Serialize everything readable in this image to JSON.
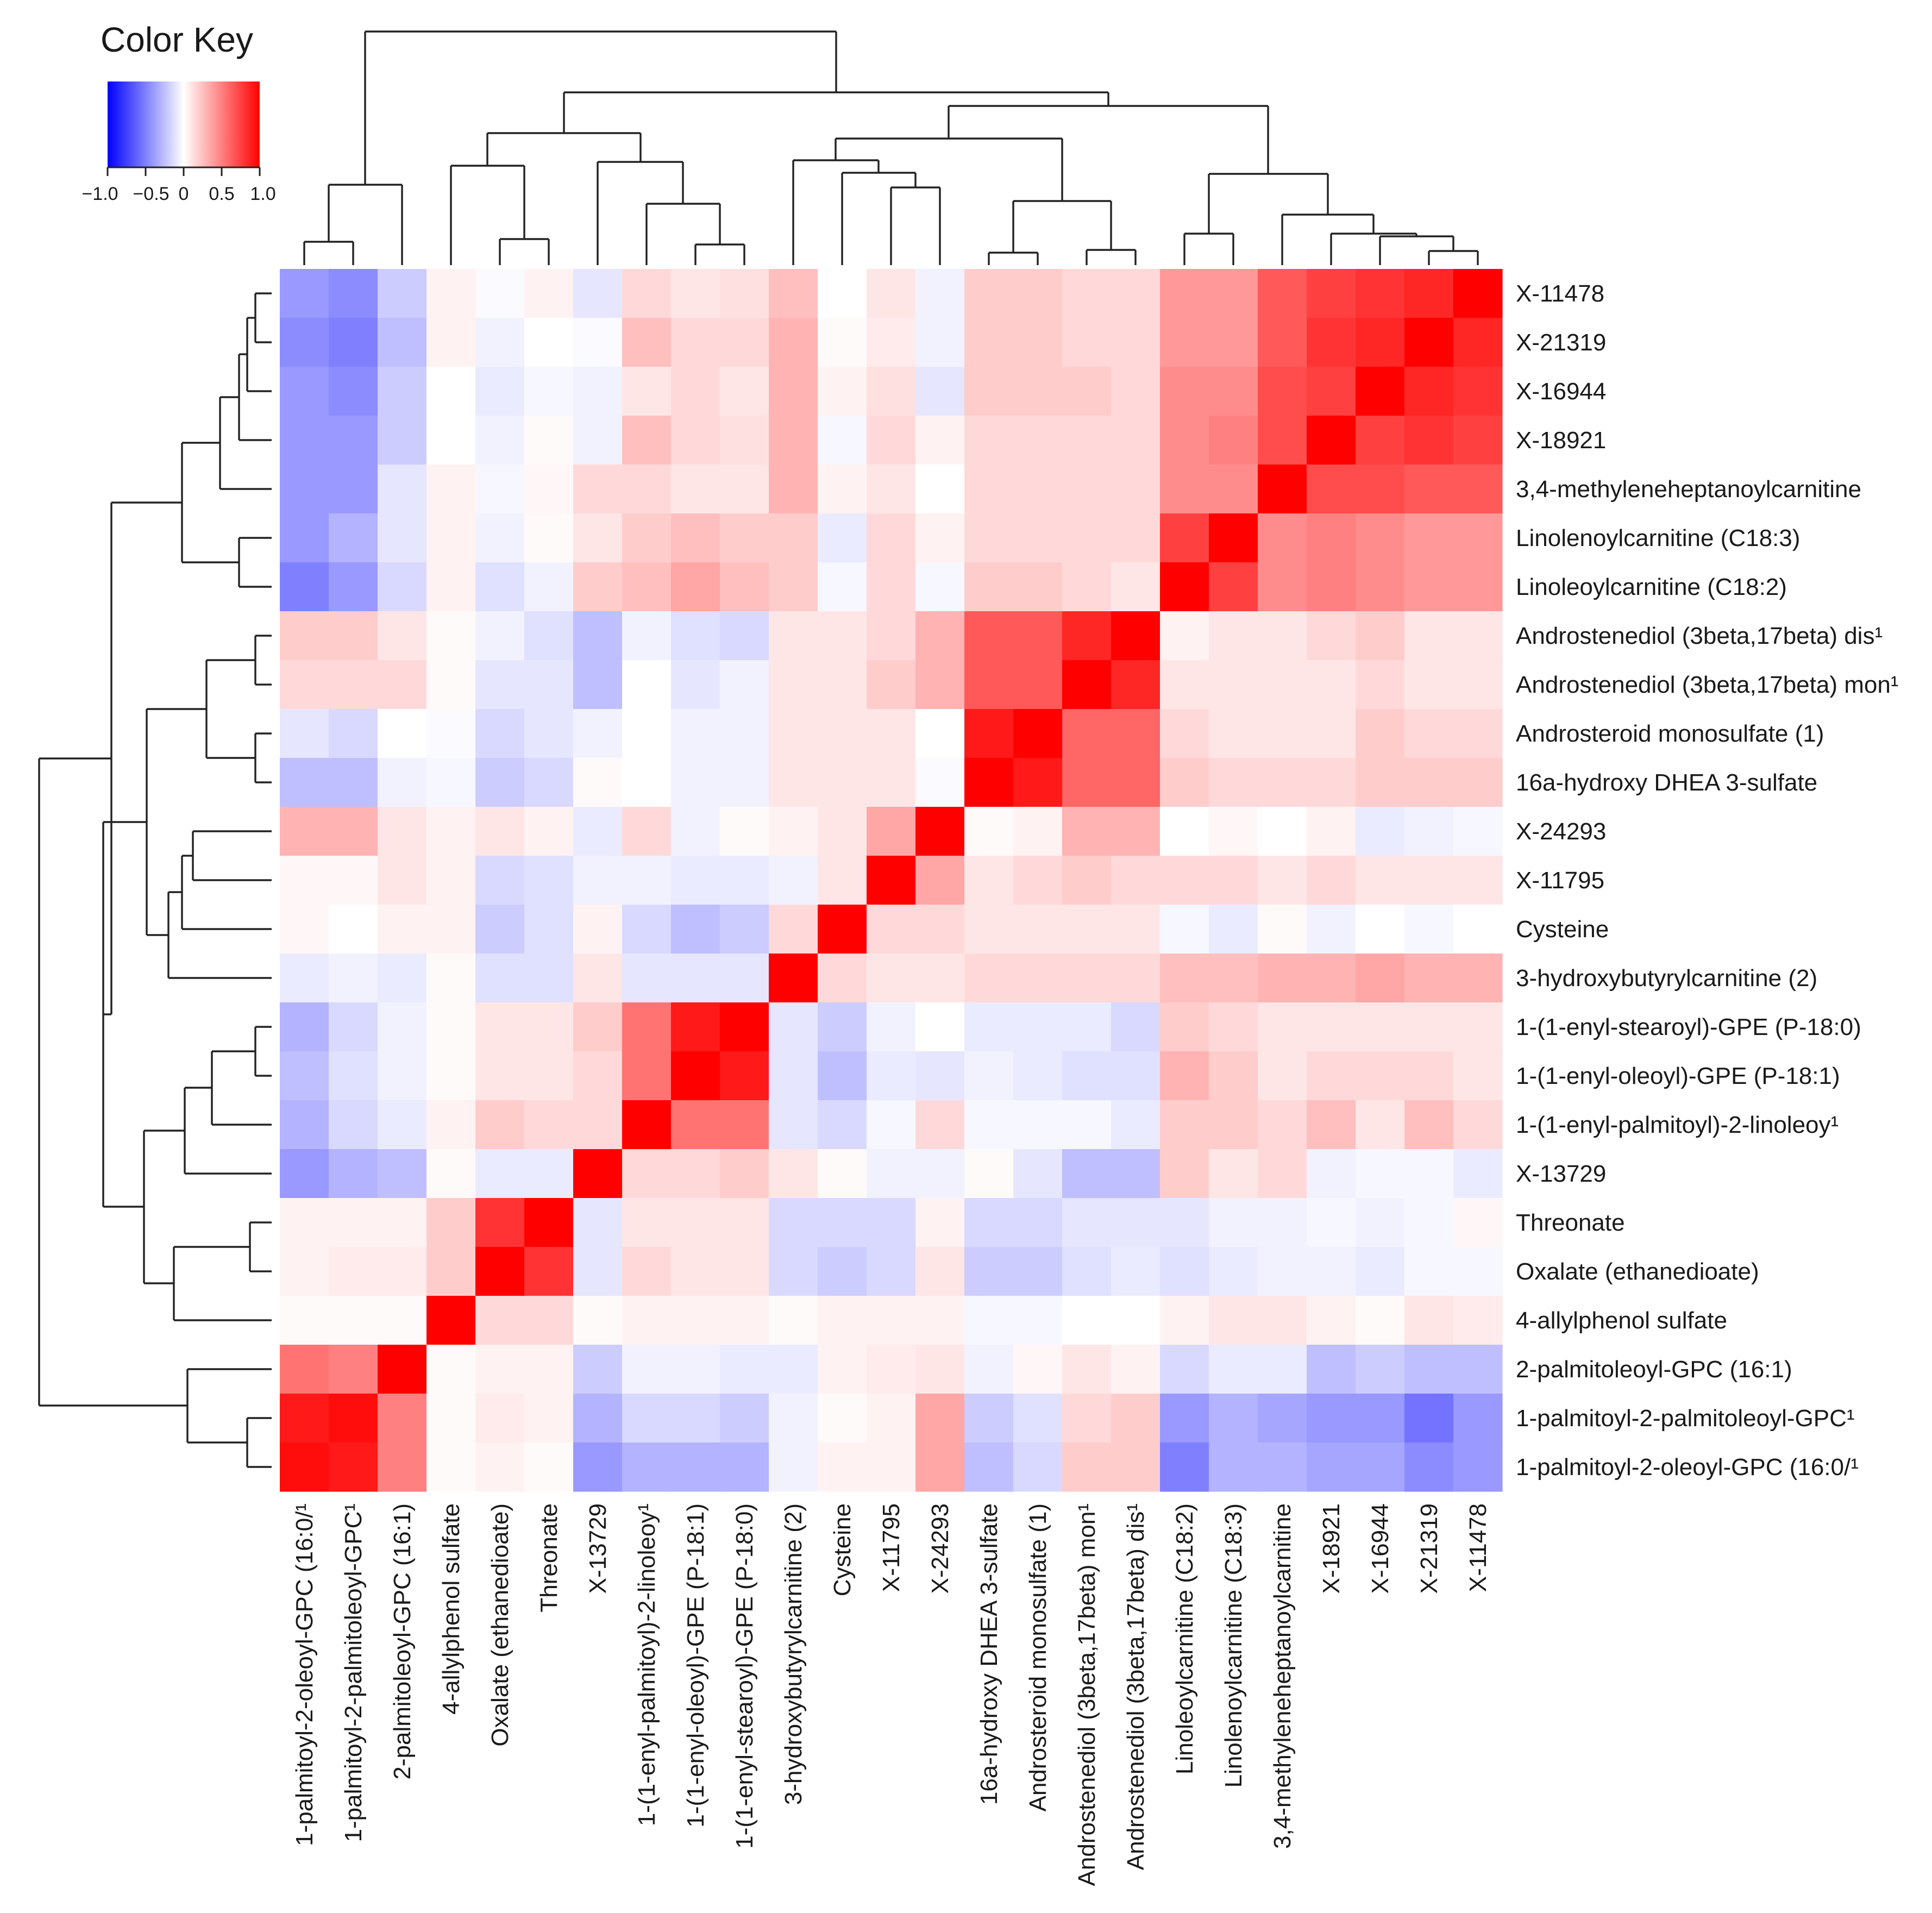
{
  "chart_data": {
    "type": "heatmap",
    "title": "",
    "color_key": {
      "title": "Color Key",
      "tick_labels": [
        "−1.0",
        "−0.5",
        "0",
        "0.5",
        "1.0"
      ],
      "range": [
        -1.0,
        1.0
      ],
      "low_color": "#0000ff",
      "mid_color": "#ffffff",
      "high_color": "#ff0000"
    },
    "row_labels": [
      "X-11478",
      "X-21319",
      "X-16944",
      "X-18921",
      "3,4-methyleneheptanoylcarnitine",
      "Linolenoylcarnitine (C18:3)",
      "Linoleoylcarnitine (C18:2)",
      "Androstenediol (3beta,17beta) dis¹",
      "Androstenediol (3beta,17beta) mon¹",
      "Androsteroid monosulfate (1)",
      "16a-hydroxy DHEA 3-sulfate",
      "X-24293",
      "X-11795",
      "Cysteine",
      "3-hydroxybutyrylcarnitine (2)",
      "1-(1-enyl-stearoyl)-GPE (P-18:0)",
      "1-(1-enyl-oleoyl)-GPE (P-18:1)",
      "1-(1-enyl-palmitoyl)-2-linoleoy¹",
      "X-13729",
      "Threonate",
      "Oxalate (ethanedioate)",
      "4-allylphenol sulfate",
      "2-palmitoleoyl-GPC (16:1)",
      "1-palmitoyl-2-palmitoleoyl-GPC¹",
      "1-palmitoyl-2-oleoyl-GPC (16:0/¹"
    ],
    "column_labels": [
      "1-palmitoyl-2-oleoyl-GPC (16:0/¹",
      "1-palmitoyl-2-palmitoleoyl-GPC¹",
      "2-palmitoleoyl-GPC (16:1)",
      "4-allylphenol sulfate",
      "Oxalate (ethanedioate)",
      "Threonate",
      "X-13729",
      "1-(1-enyl-palmitoyl)-2-linoleoy¹",
      "1-(1-enyl-oleoyl)-GPE (P-18:1)",
      "1-(1-enyl-stearoyl)-GPE (P-18:0)",
      "3-hydroxybutyrylcarnitine (2)",
      "Cysteine",
      "X-11795",
      "X-24293",
      "16a-hydroxy DHEA 3-sulfate",
      "Androsteroid monosulfate (1)",
      "Androstenediol (3beta,17beta) mon¹",
      "Androstenediol (3beta,17beta) dis¹",
      "Linoleoylcarnitine (C18:2)",
      "Linolenoylcarnitine (C18:3)",
      "3,4-methyleneheptanoylcarnitine",
      "X-18921",
      "X-16944",
      "X-21319",
      "X-11478"
    ],
    "values": [
      [
        -0.4,
        -0.45,
        -0.2,
        0.05,
        -0.02,
        0.05,
        -0.1,
        0.15,
        0.1,
        0.12,
        0.25,
        0.0,
        0.1,
        -0.05,
        0.2,
        0.2,
        0.15,
        0.15,
        0.4,
        0.4,
        0.65,
        0.75,
        0.8,
        0.85,
        1.0
      ],
      [
        -0.45,
        -0.5,
        -0.25,
        0.05,
        -0.05,
        0.0,
        -0.02,
        0.25,
        0.15,
        0.15,
        0.3,
        0.02,
        0.08,
        -0.05,
        0.2,
        0.2,
        0.15,
        0.15,
        0.4,
        0.4,
        0.65,
        0.8,
        0.85,
        1.0,
        0.85
      ],
      [
        -0.4,
        -0.45,
        -0.2,
        0.0,
        -0.08,
        -0.03,
        -0.05,
        0.1,
        0.15,
        0.1,
        0.3,
        0.05,
        0.12,
        -0.1,
        0.2,
        0.2,
        0.2,
        0.15,
        0.45,
        0.45,
        0.7,
        0.75,
        1.0,
        0.85,
        0.8
      ],
      [
        -0.4,
        -0.4,
        -0.2,
        0.0,
        -0.05,
        0.02,
        -0.05,
        0.25,
        0.15,
        0.12,
        0.3,
        -0.03,
        0.15,
        0.05,
        0.15,
        0.15,
        0.15,
        0.15,
        0.45,
        0.5,
        0.7,
        1.0,
        0.75,
        0.8,
        0.75
      ],
      [
        -0.4,
        -0.4,
        -0.1,
        0.05,
        -0.03,
        0.03,
        0.15,
        0.15,
        0.1,
        0.1,
        0.3,
        0.05,
        0.1,
        0.0,
        0.15,
        0.15,
        0.15,
        0.15,
        0.45,
        0.45,
        1.0,
        0.7,
        0.7,
        0.65,
        0.65
      ],
      [
        -0.4,
        -0.3,
        -0.1,
        0.05,
        -0.05,
        0.02,
        0.1,
        0.2,
        0.25,
        0.2,
        0.2,
        -0.08,
        0.15,
        0.05,
        0.15,
        0.15,
        0.15,
        0.15,
        0.75,
        1.0,
        0.45,
        0.5,
        0.45,
        0.4,
        0.4
      ],
      [
        -0.5,
        -0.4,
        -0.15,
        0.05,
        -0.12,
        -0.05,
        0.2,
        0.25,
        0.35,
        0.25,
        0.2,
        -0.03,
        0.15,
        -0.03,
        0.2,
        0.2,
        0.15,
        0.1,
        1.0,
        0.75,
        0.45,
        0.5,
        0.45,
        0.4,
        0.4
      ],
      [
        0.2,
        0.2,
        0.1,
        0.02,
        -0.05,
        -0.12,
        -0.25,
        -0.05,
        -0.12,
        -0.15,
        0.1,
        0.1,
        0.15,
        0.3,
        0.65,
        0.65,
        0.85,
        1.0,
        0.05,
        0.1,
        0.1,
        0.15,
        0.2,
        0.1,
        0.1
      ],
      [
        0.15,
        0.15,
        0.15,
        0.02,
        -0.1,
        -0.1,
        -0.25,
        0.0,
        -0.1,
        -0.05,
        0.1,
        0.1,
        0.2,
        0.3,
        0.65,
        0.65,
        1.0,
        0.85,
        0.1,
        0.1,
        0.1,
        0.1,
        0.15,
        0.1,
        0.1
      ],
      [
        -0.1,
        -0.15,
        0.0,
        -0.02,
        -0.15,
        -0.1,
        -0.05,
        0.0,
        -0.05,
        -0.05,
        0.1,
        0.1,
        0.1,
        0.0,
        0.9,
        1.0,
        0.6,
        0.6,
        0.15,
        0.1,
        0.1,
        0.1,
        0.2,
        0.15,
        0.15
      ],
      [
        -0.25,
        -0.25,
        -0.05,
        -0.03,
        -0.2,
        -0.15,
        0.02,
        0.0,
        -0.05,
        -0.05,
        0.1,
        0.1,
        0.1,
        -0.02,
        1.0,
        0.9,
        0.6,
        0.6,
        0.2,
        0.15,
        0.15,
        0.15,
        0.2,
        0.2,
        0.2
      ],
      [
        0.3,
        0.3,
        0.1,
        0.05,
        0.1,
        0.05,
        -0.08,
        0.15,
        -0.05,
        0.02,
        0.05,
        0.1,
        0.35,
        1.0,
        0.02,
        0.05,
        0.3,
        0.3,
        0.0,
        0.03,
        0.0,
        0.05,
        -0.08,
        -0.05,
        -0.03
      ],
      [
        0.03,
        0.03,
        0.1,
        0.05,
        -0.15,
        -0.12,
        -0.05,
        -0.05,
        -0.08,
        -0.08,
        -0.05,
        0.1,
        1.0,
        0.35,
        0.1,
        0.15,
        0.2,
        0.15,
        0.15,
        0.15,
        0.1,
        0.15,
        0.1,
        0.1,
        0.1
      ],
      [
        0.03,
        0.0,
        0.05,
        0.05,
        -0.2,
        -0.12,
        0.05,
        -0.15,
        -0.25,
        -0.2,
        0.15,
        1.0,
        0.15,
        0.15,
        0.1,
        0.1,
        0.1,
        0.1,
        -0.03,
        -0.08,
        0.02,
        -0.05,
        0.0,
        -0.03,
        0.0
      ],
      [
        -0.08,
        -0.05,
        -0.08,
        0.02,
        -0.12,
        -0.12,
        0.1,
        -0.1,
        -0.1,
        -0.1,
        1.0,
        0.15,
        0.1,
        0.1,
        0.15,
        0.15,
        0.15,
        0.15,
        0.25,
        0.25,
        0.3,
        0.3,
        0.35,
        0.3,
        0.3
      ],
      [
        -0.3,
        -0.15,
        -0.05,
        0.02,
        0.1,
        0.1,
        0.2,
        0.55,
        0.9,
        1.0,
        -0.1,
        -0.2,
        -0.05,
        0.0,
        -0.08,
        -0.08,
        -0.08,
        -0.15,
        0.2,
        0.15,
        0.1,
        0.1,
        0.1,
        0.1,
        0.1
      ],
      [
        -0.25,
        -0.12,
        -0.05,
        0.02,
        0.1,
        0.1,
        0.15,
        0.55,
        1.0,
        0.9,
        -0.1,
        -0.25,
        -0.08,
        -0.1,
        -0.05,
        -0.08,
        -0.12,
        -0.12,
        0.3,
        0.2,
        0.1,
        0.15,
        0.15,
        0.15,
        0.1
      ],
      [
        -0.3,
        -0.15,
        -0.08,
        0.05,
        0.2,
        0.15,
        0.15,
        1.0,
        0.55,
        0.55,
        -0.1,
        -0.15,
        -0.03,
        0.15,
        -0.03,
        -0.03,
        -0.03,
        -0.08,
        0.2,
        0.2,
        0.15,
        0.25,
        0.1,
        0.25,
        0.15
      ],
      [
        -0.4,
        -0.3,
        -0.25,
        0.02,
        -0.08,
        -0.08,
        1.0,
        0.15,
        0.15,
        0.2,
        0.1,
        0.02,
        -0.05,
        -0.05,
        0.02,
        -0.1,
        -0.25,
        -0.25,
        0.2,
        0.1,
        0.15,
        -0.05,
        -0.03,
        -0.03,
        -0.08
      ],
      [
        0.05,
        0.05,
        0.05,
        0.2,
        0.8,
        1.0,
        -0.1,
        0.1,
        0.1,
        0.1,
        -0.15,
        -0.15,
        -0.15,
        0.05,
        -0.15,
        -0.15,
        -0.1,
        -0.1,
        -0.1,
        -0.05,
        -0.05,
        -0.03,
        -0.05,
        -0.03,
        0.03
      ],
      [
        0.05,
        0.08,
        0.08,
        0.2,
        1.0,
        0.8,
        -0.1,
        0.15,
        0.1,
        0.1,
        -0.15,
        -0.2,
        -0.15,
        0.1,
        -0.2,
        -0.2,
        -0.12,
        -0.08,
        -0.12,
        -0.08,
        -0.05,
        -0.05,
        -0.08,
        -0.03,
        -0.03
      ],
      [
        0.02,
        0.02,
        0.02,
        1.0,
        0.15,
        0.15,
        0.02,
        0.05,
        0.05,
        0.05,
        0.02,
        0.05,
        0.05,
        0.05,
        -0.03,
        -0.03,
        0.0,
        0.0,
        0.05,
        0.1,
        0.1,
        0.05,
        0.02,
        0.1,
        0.08
      ],
      [
        0.55,
        0.5,
        1.0,
        0.02,
        0.05,
        0.05,
        -0.2,
        -0.05,
        -0.05,
        -0.08,
        -0.08,
        0.05,
        0.08,
        0.1,
        -0.05,
        0.03,
        0.1,
        0.05,
        -0.15,
        -0.08,
        -0.08,
        -0.25,
        -0.2,
        -0.25,
        -0.25
      ],
      [
        0.9,
        0.95,
        0.5,
        0.02,
        0.08,
        0.05,
        -0.3,
        -0.15,
        -0.15,
        -0.2,
        -0.05,
        0.02,
        0.05,
        0.35,
        -0.2,
        -0.12,
        0.15,
        0.2,
        -0.4,
        -0.3,
        -0.35,
        -0.4,
        -0.4,
        -0.55,
        -0.4
      ],
      [
        0.95,
        0.9,
        0.5,
        0.02,
        0.05,
        0.02,
        -0.4,
        -0.3,
        -0.3,
        -0.3,
        -0.05,
        0.05,
        0.05,
        0.35,
        -0.25,
        -0.15,
        0.2,
        0.2,
        -0.5,
        -0.3,
        -0.3,
        -0.35,
        -0.35,
        -0.45,
        -0.4
      ]
    ]
  }
}
